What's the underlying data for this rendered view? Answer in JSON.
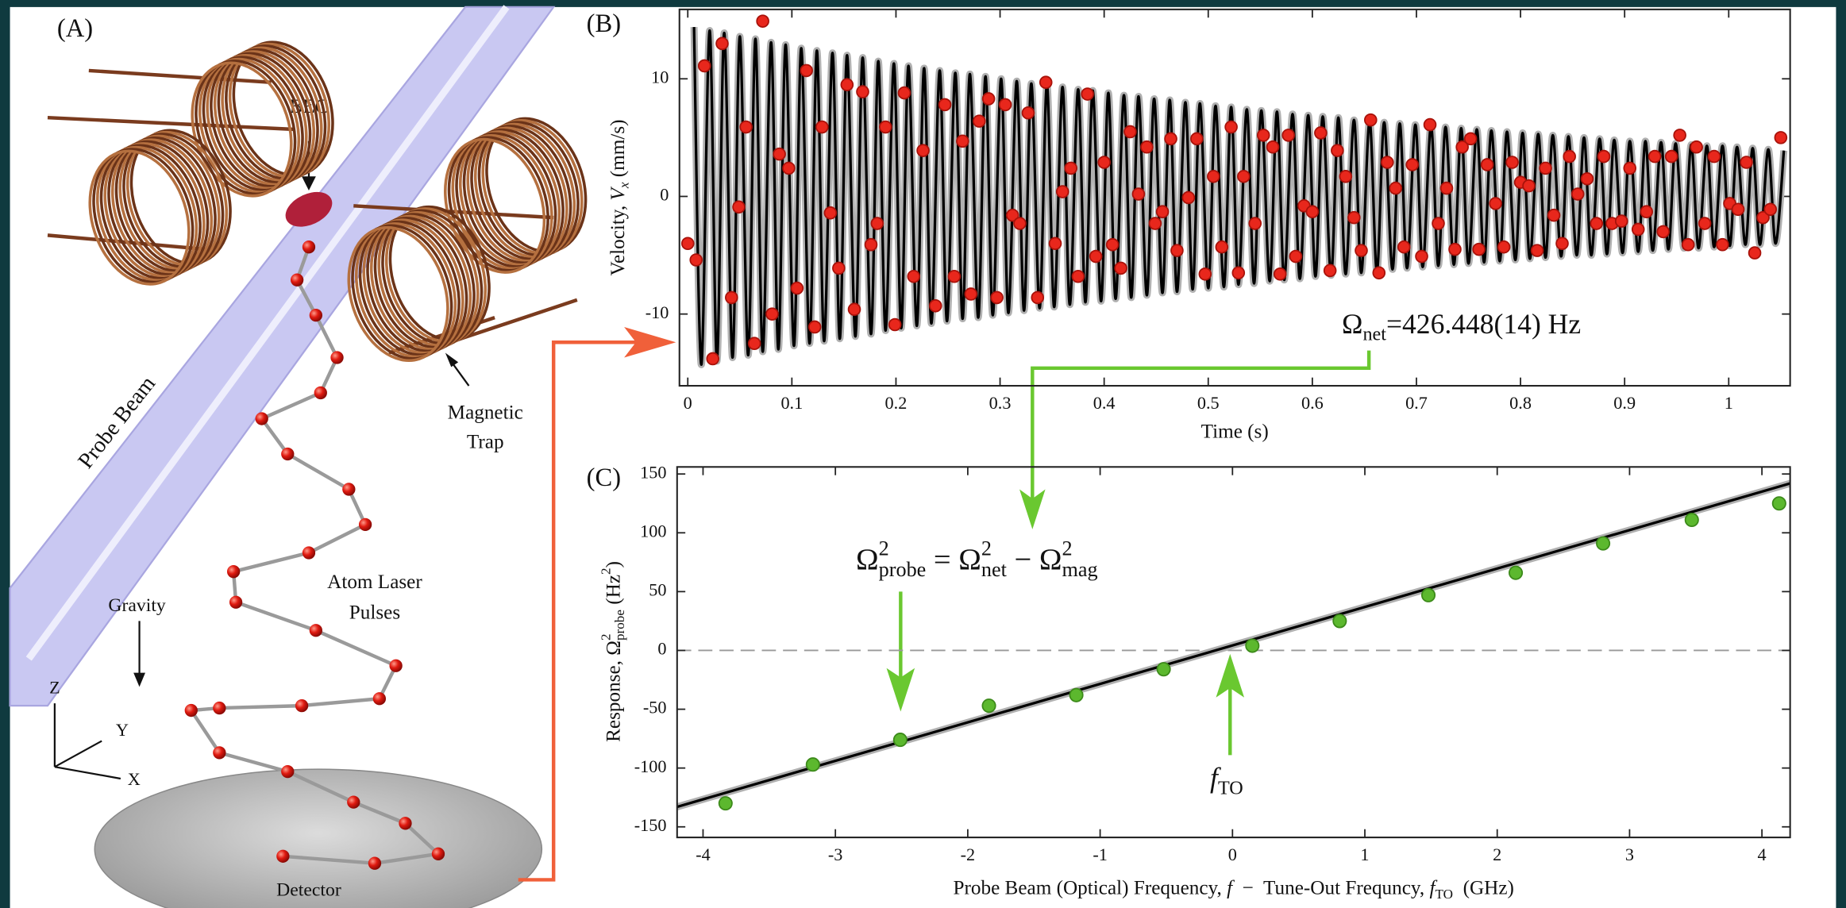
{
  "illustration": {
    "panel_label": "(A)",
    "bec": "BEC",
    "probe_beam": "Probe Beam",
    "magnetic_trap": [
      "Magnetic",
      "Trap"
    ],
    "atom_laser_pulses": [
      "Atom Laser",
      "Pulses"
    ],
    "gravity": "Gravity",
    "detector": "Detector",
    "axes": [
      "Z",
      "Y",
      "X"
    ]
  },
  "chart_data": [
    {
      "type": "scatter",
      "panel_label": "(B)",
      "x_label": [
        {
          "text": "Time (s)"
        }
      ],
      "y_label": [
        {
          "text": "Velocity, "
        },
        {
          "text": "V",
          "style": "italic"
        },
        {
          "text": "x",
          "style": "sub italic"
        },
        {
          "text": " (mm/s)"
        }
      ],
      "annotation": [
        {
          "text": "Ω"
        },
        {
          "text": "net",
          "style": "sub"
        },
        {
          "text": "=426.448(14) Hz"
        }
      ],
      "xlim": [
        -0.008,
        1.059
      ],
      "ylim": [
        -16.1,
        15.9
      ],
      "xticks": [
        0,
        0.1,
        0.2,
        0.3,
        0.4,
        0.5,
        0.6,
        0.7,
        0.8,
        0.9,
        1
      ],
      "yticks": [
        -10,
        0,
        10
      ],
      "series": [
        {
          "type": "line",
          "color": "#000000",
          "x": [
            0.006,
            0.013,
            0.021,
            0.028,
            0.035,
            0.043,
            0.05,
            0.058,
            0.065,
            0.072,
            0.08,
            0.087,
            0.094,
            0.102,
            0.109,
            0.117,
            0.124,
            0.131,
            0.139,
            0.146,
            0.153,
            0.161,
            0.168,
            0.176,
            0.183,
            0.19,
            0.198,
            0.205,
            0.212,
            0.22,
            0.227,
            0.234,
            0.242,
            0.249,
            0.257,
            0.264,
            0.271,
            0.279,
            0.286,
            0.293,
            0.301,
            0.308,
            0.316,
            0.323,
            0.33,
            0.338,
            0.345,
            0.352,
            0.36,
            0.367,
            0.375,
            0.382,
            0.389,
            0.397,
            0.404,
            0.411,
            0.419,
            0.426,
            0.433,
            0.441,
            0.448,
            0.456,
            0.463,
            0.47,
            0.478,
            0.485,
            0.492,
            0.5,
            0.507,
            0.515,
            0.522,
            0.529,
            0.537,
            0.544,
            0.551,
            0.559,
            0.566,
            0.573,
            0.581,
            0.588,
            0.596,
            0.603,
            0.61,
            0.618,
            0.625,
            0.632,
            0.64,
            0.647,
            0.655,
            0.662,
            0.669,
            0.677,
            0.684,
            0.691,
            0.699,
            0.706,
            0.714,
            0.721,
            0.728,
            0.736,
            0.743,
            0.75,
            0.758,
            0.765,
            0.772,
            0.78,
            0.787,
            0.795,
            0.802,
            0.809,
            0.817,
            0.824,
            0.831,
            0.839,
            0.846,
            0.854,
            0.861,
            0.868,
            0.876,
            0.883,
            0.89,
            0.898,
            0.905,
            0.913,
            0.92,
            0.927,
            0.935,
            0.942,
            0.949,
            0.957,
            0.964,
            0.971,
            0.979,
            0.986,
            0.994,
            1.001,
            1.008,
            1.016,
            1.023,
            1.03,
            1.038,
            1.045,
            1.053
          ],
          "values": [
            14.4,
            -14.3,
            14.1,
            -14.0,
            13.9,
            -13.7,
            13.6,
            -13.5,
            13.4,
            -13.2,
            13.1,
            -13.0,
            12.9,
            -12.7,
            12.6,
            -12.5,
            12.4,
            -12.3,
            12.2,
            -12.1,
            12.0,
            -11.9,
            11.8,
            -11.7,
            11.5,
            -11.4,
            11.3,
            -11.2,
            11.1,
            -11.0,
            10.9,
            -10.8,
            10.7,
            -10.6,
            10.5,
            -10.4,
            10.4,
            -10.3,
            10.2,
            -10.1,
            10.0,
            -9.9,
            9.8,
            -9.7,
            9.6,
            -9.5,
            9.5,
            -9.4,
            9.3,
            -9.2,
            9.1,
            -9.0,
            9.0,
            -8.9,
            8.8,
            -8.7,
            8.6,
            -8.6,
            8.5,
            -8.4,
            8.3,
            -8.2,
            8.2,
            -8.1,
            8.0,
            -7.9,
            7.9,
            -7.8,
            7.7,
            -7.7,
            7.6,
            -7.5,
            7.4,
            -7.4,
            7.3,
            -7.2,
            7.2,
            -7.1,
            7.0,
            -7.0,
            6.9,
            -6.8,
            6.8,
            -6.7,
            6.7,
            -6.6,
            6.5,
            -6.5,
            6.4,
            -6.4,
            6.3,
            -6.2,
            6.2,
            -6.1,
            6.1,
            -6.0,
            6.0,
            -5.9,
            5.9,
            -5.8,
            5.8,
            -5.7,
            5.7,
            -5.6,
            5.6,
            -5.5,
            5.5,
            -5.4,
            5.4,
            -5.3,
            5.3,
            -5.2,
            5.2,
            -5.1,
            5.1,
            -5.0,
            5.0,
            -5.0,
            4.9,
            -4.9,
            4.8,
            -4.8,
            4.7,
            -4.7,
            4.7,
            -4.6,
            4.6,
            -4.5,
            4.5,
            -4.4,
            4.4,
            -4.4,
            4.3,
            -4.3,
            4.3,
            -4.2,
            4.2,
            -4.1,
            4.1,
            -4.1,
            4.0,
            -4.0,
            3.9
          ]
        },
        {
          "type": "scatter",
          "color": "#e8271c",
          "x": [
            0,
            0.008,
            0.016,
            0.024,
            0.033,
            0.042,
            0.049,
            0.056,
            0.064,
            0.072,
            0.081,
            0.088,
            0.097,
            0.105,
            0.114,
            0.122,
            0.129,
            0.137,
            0.145,
            0.153,
            0.16,
            0.168,
            0.176,
            0.182,
            0.19,
            0.199,
            0.208,
            0.217,
            0.226,
            0.238,
            0.247,
            0.256,
            0.264,
            0.272,
            0.28,
            0.289,
            0.297,
            0.305,
            0.312,
            0.319,
            0.327,
            0.336,
            0.344,
            0.353,
            0.36,
            0.368,
            0.375,
            0.384,
            0.392,
            0.4,
            0.408,
            0.416,
            0.425,
            0.433,
            0.441,
            0.449,
            0.456,
            0.464,
            0.47,
            0.481,
            0.489,
            0.497,
            0.505,
            0.513,
            0.522,
            0.529,
            0.534,
            0.545,
            0.553,
            0.562,
            0.569,
            0.577,
            0.584,
            0.592,
            0.6,
            0.608,
            0.617,
            0.624,
            0.632,
            0.64,
            0.647,
            0.656,
            0.664,
            0.672,
            0.68,
            0.688,
            0.696,
            0.705,
            0.713,
            0.721,
            0.729,
            0.737,
            0.744,
            0.752,
            0.76,
            0.768,
            0.776,
            0.784,
            0.792,
            0.8,
            0.808,
            0.816,
            0.824,
            0.832,
            0.84,
            0.847,
            0.855,
            0.864,
            0.873,
            0.88,
            0.888,
            0.897,
            0.905,
            0.913,
            0.921,
            0.929,
            0.937,
            0.945,
            0.953,
            0.961,
            0.969,
            0.977,
            0.986,
            0.994,
            1.001,
            1.009,
            1.017,
            1.025,
            1.033,
            1.04,
            1.05
          ],
          "values": [
            -4.0,
            -5.4,
            11.1,
            -13.8,
            13.0,
            -8.6,
            -0.9,
            5.9,
            -12.5,
            14.9,
            -10.0,
            3.6,
            2.4,
            -7.8,
            10.7,
            -11.1,
            5.9,
            -1.4,
            -6.1,
            9.5,
            -9.6,
            8.9,
            -4.1,
            -2.3,
            5.9,
            -10.9,
            8.8,
            -6.8,
            3.9,
            -9.3,
            7.8,
            -6.8,
            4.7,
            -8.3,
            6.4,
            8.3,
            -8.6,
            7.8,
            -1.6,
            -2.3,
            7.1,
            -8.6,
            9.7,
            -4.0,
            0.4,
            2.4,
            -6.8,
            8.7,
            -5.1,
            2.9,
            -4.1,
            -6.1,
            5.5,
            0.2,
            4.2,
            -2.3,
            -1.3,
            4.9,
            -4.6,
            -0.1,
            4.9,
            -6.6,
            1.7,
            -4.3,
            5.9,
            -6.5,
            1.7,
            -2.3,
            5.2,
            4.2,
            -6.6,
            5.2,
            -5.1,
            -0.8,
            -1.3,
            5.4,
            -6.3,
            3.9,
            1.7,
            -1.8,
            -4.6,
            6.5,
            -6.5,
            2.9,
            0.7,
            -4.3,
            2.7,
            -5.1,
            6.1,
            -2.3,
            0.7,
            -4.5,
            4.2,
            4.9,
            -4.5,
            2.7,
            -0.6,
            -4.3,
            2.9,
            1.2,
            0.9,
            -4.6,
            2.4,
            -1.6,
            -4.0,
            3.4,
            0.2,
            1.5,
            -2.3,
            3.4,
            -2.3,
            -2.1,
            2.4,
            -2.8,
            -1.3,
            3.4,
            -3.0,
            3.4,
            5.2,
            -4.1,
            4.2,
            -2.3,
            3.4,
            -4.1,
            -0.6,
            -1.1,
            2.9,
            -4.8,
            -1.8,
            -1.1,
            5.0
          ]
        }
      ]
    },
    {
      "type": "scatter",
      "panel_label": "(C)",
      "zero_line": true,
      "x_label": [
        {
          "text": "Probe Beam (Optical) Frequency, "
        },
        {
          "text": "f",
          "style": "italic"
        },
        {
          "text": "  −  Tune-Out Frequncy, "
        },
        {
          "text": "f",
          "style": "italic"
        },
        {
          "text": "TO",
          "style": "sub"
        },
        {
          "text": "  (GHz)"
        }
      ],
      "y_label": [
        {
          "text": "Response, Ω"
        },
        {
          "text": "2",
          "style": "sup"
        },
        {
          "text": "probe",
          "style": "sub"
        },
        {
          "text": " (Hz"
        },
        {
          "text": "2",
          "style": "sup"
        },
        {
          "text": ")"
        }
      ],
      "equation": [
        {
          "text": "Ω"
        },
        {
          "text": "2",
          "style": "sup"
        },
        {
          "text": "probe",
          "style": "sub"
        },
        {
          "text": " = Ω"
        },
        {
          "text": "2",
          "style": "sup"
        },
        {
          "text": "net",
          "style": "sub"
        },
        {
          "text": " − Ω"
        },
        {
          "text": "2",
          "style": "sup"
        },
        {
          "text": "mag",
          "style": "sub"
        }
      ],
      "annotation": [
        {
          "text": "f",
          "style": "italic"
        },
        {
          "text": "TO",
          "style": "sub"
        }
      ],
      "xlim": [
        -4.196,
        4.213
      ],
      "ylim": [
        -159,
        156
      ],
      "xticks": [
        -4,
        -3,
        -2,
        -1,
        0,
        1,
        2,
        3,
        4
      ],
      "yticks": [
        -150,
        -100,
        -50,
        0,
        50,
        100,
        150
      ],
      "series": [
        {
          "type": "line",
          "color": "#000000",
          "x": [
            -4.196,
            4.213
          ],
          "values": [
            -133,
            142
          ]
        },
        {
          "type": "scatter",
          "color": "#5cb82e",
          "x": [
            -3.83,
            -3.17,
            -2.51,
            -1.84,
            -1.18,
            -0.52,
            0.15,
            0.81,
            1.48,
            2.14,
            2.8,
            3.47,
            4.13
          ],
          "values": [
            -130,
            -97,
            -76,
            -47,
            -38,
            -16,
            4,
            25,
            47,
            66,
            91,
            111,
            125
          ]
        }
      ]
    }
  ]
}
